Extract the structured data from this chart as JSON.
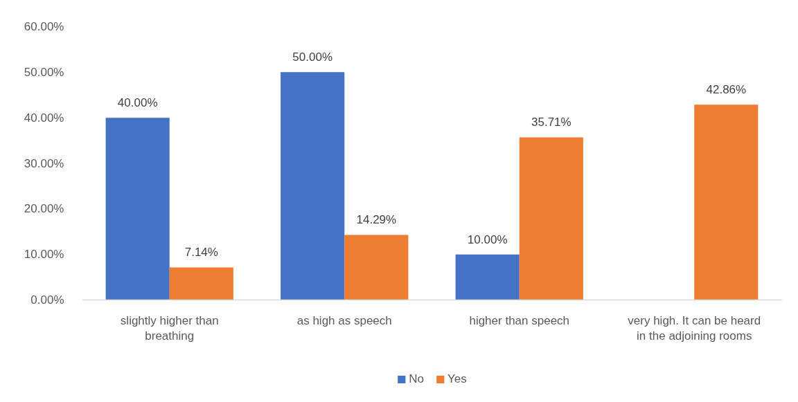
{
  "chart_data": {
    "type": "bar",
    "categories": [
      "slightly higher than breathing",
      "as high as speech",
      "higher than speech",
      "very high. It can be heard in the adjoining rooms"
    ],
    "series": [
      {
        "name": "No",
        "color": "#4472c4",
        "values": [
          40.0,
          50.0,
          10.0,
          null
        ],
        "value_labels": [
          "40.00%",
          "50.00%",
          "10.00%",
          null
        ]
      },
      {
        "name": "Yes",
        "color": "#ed7d31",
        "values": [
          7.14,
          14.29,
          35.71,
          42.86
        ],
        "value_labels": [
          "7.14%",
          "14.29%",
          "35.71%",
          "42.86%"
        ]
      }
    ],
    "ylim": [
      0,
      60
    ],
    "yticks": [
      {
        "value": 0,
        "label": "0.00%"
      },
      {
        "value": 10,
        "label": "10.00%"
      },
      {
        "value": 20,
        "label": "20.00%"
      },
      {
        "value": 30,
        "label": "30.00%"
      },
      {
        "value": 40,
        "label": "40.00%"
      },
      {
        "value": 50,
        "label": "50.00%"
      },
      {
        "value": 60,
        "label": "60.00%"
      }
    ],
    "grid": false,
    "legend": "bottom"
  }
}
